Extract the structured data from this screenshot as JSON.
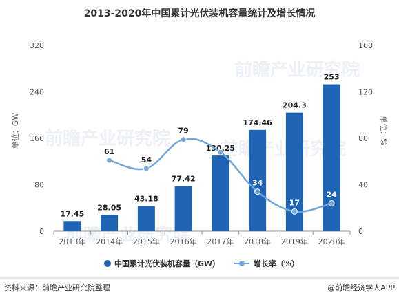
{
  "chart_data": {
    "type": "bar",
    "title": "2013-2020年中国累计光伏装机容量统计及增长情况",
    "categories": [
      "2013年",
      "2014年",
      "2015年",
      "2016年",
      "2017年",
      "2018年",
      "2019年",
      "2020年"
    ],
    "series": [
      {
        "name": "中国累计光伏装机容量（GW）",
        "type": "bar",
        "axis": "left",
        "values": [
          17.45,
          28.05,
          43.18,
          77.42,
          130.25,
          174.46,
          204.3,
          253
        ],
        "labels": [
          "17.45",
          "28.05",
          "43.18",
          "77.42",
          "130.25",
          "174.46",
          "204.3",
          "253"
        ]
      },
      {
        "name": "增长率（%）",
        "type": "line",
        "axis": "right",
        "values": [
          null,
          61,
          54,
          79,
          68,
          34,
          17,
          24
        ],
        "labels": [
          "",
          "61",
          "54",
          "79",
          "",
          "34",
          "17",
          "24"
        ]
      }
    ],
    "ylabel_left": "单位：GW",
    "ylabel_right": "单位：%",
    "ylim_left": [
      0,
      320
    ],
    "ylim_right": [
      0,
      160
    ],
    "yticks_left": [
      "0",
      "80",
      "160",
      "240",
      "320"
    ],
    "yticks_right": [
      "0",
      "40",
      "80",
      "120",
      "160"
    ],
    "grid": false,
    "legend": "bottom"
  },
  "colors": {
    "bar": "#1f64b4",
    "line": "#6fa7dd",
    "axis": "#999999"
  },
  "footer": {
    "source": "资料来源：前瞻产业研究院整理",
    "brand": "@前瞻经济学人APP"
  },
  "watermark": {
    "text": "前瞻产业研究院"
  }
}
